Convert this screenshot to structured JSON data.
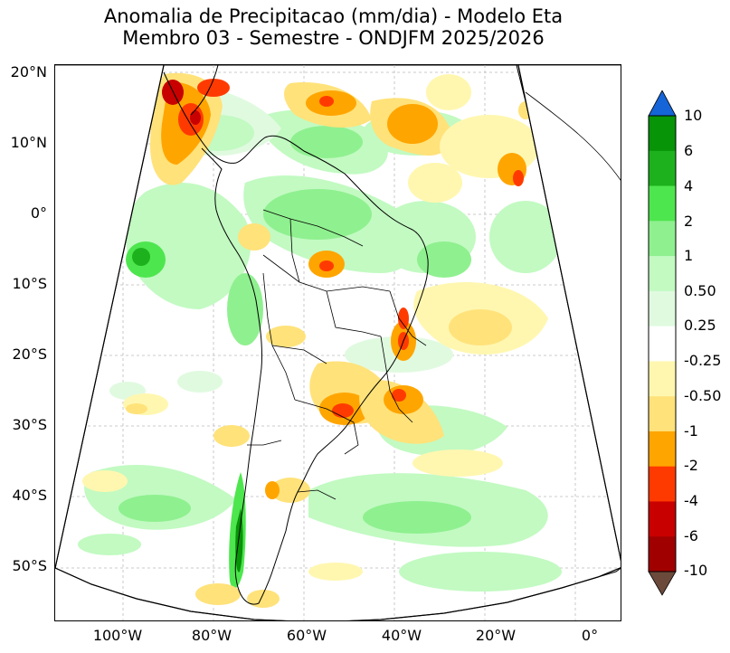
{
  "title": {
    "line1": "Anomalia de Precipitacao (mm/dia) - Modelo Eta",
    "line2": "Membro 03 - Semestre - ONDJFM 2025/2026"
  },
  "axes": {
    "lat_labels": [
      "20°N",
      "10°N",
      "0°",
      "10°S",
      "20°S",
      "30°S",
      "40°S",
      "50°S"
    ],
    "lon_labels": [
      "100°W",
      "80°W",
      "60°W",
      "40°W",
      "20°W",
      "0°"
    ]
  },
  "colorbar": {
    "labels": [
      "10",
      "6",
      "4",
      "2",
      "1",
      "0.50",
      "0.25",
      "-0.25",
      "-0.50",
      "-1",
      "-2",
      "-4",
      "-6",
      "-10"
    ],
    "colors": {
      "above_max": "#1565d8",
      "c6_10": "#079407",
      "c4_6": "#1db21d",
      "c2_4": "#4ee64e",
      "c1_2": "#8ff08f",
      "c05_1": "#c2fac2",
      "c025_05": "#e0fae0",
      "neutral": "#ffffff",
      "n025_05": "#fff7b0",
      "n05_1": "#ffe27a",
      "n1_2": "#ffa500",
      "n2_4": "#ff3a00",
      "n4_6": "#c80000",
      "n6_10": "#a00000",
      "below_min": "#6b4a3c"
    }
  }
}
